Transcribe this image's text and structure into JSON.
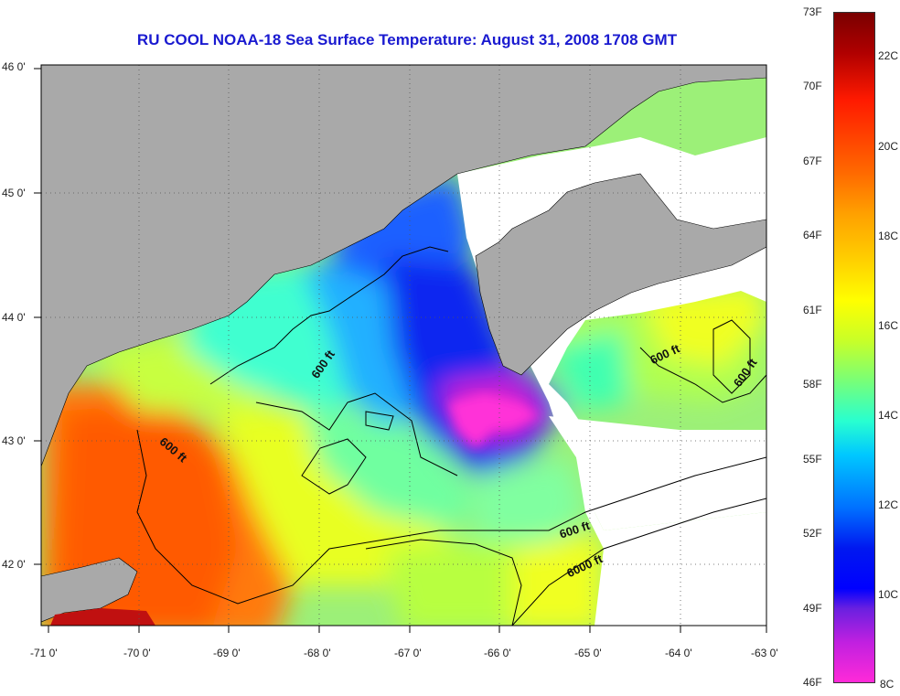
{
  "title": "RU COOL  NOAA-18  Sea Surface Temperature:  August 31, 2008 1708 GMT",
  "lon_labels": [
    "-71 0'",
    "-70 0'",
    "-69 0'",
    "-68 0'",
    "-67 0'",
    "-66 0'",
    "-65 0'",
    "-64 0'",
    "-63 0'"
  ],
  "lat_labels": [
    "46 0'",
    "45 0'",
    "44 0'",
    "43 0'",
    "42 0'"
  ],
  "contour_labels": [
    "600 ft",
    "600 ft",
    "600 ft",
    "600 ft",
    "600 ft",
    "6000 ft"
  ],
  "colorbar": {
    "fahrenheit": [
      "73F",
      "70F",
      "67F",
      "64F",
      "61F",
      "58F",
      "55F",
      "52F",
      "49F",
      "46F"
    ],
    "celsius": [
      "22C",
      "20C",
      "18C",
      "16C",
      "14C",
      "12C",
      "10C",
      "8C"
    ]
  },
  "colors": {
    "title": "#1a1ad0",
    "land": "#a9a9a9",
    "cloud_mask": "#ffffff"
  }
}
